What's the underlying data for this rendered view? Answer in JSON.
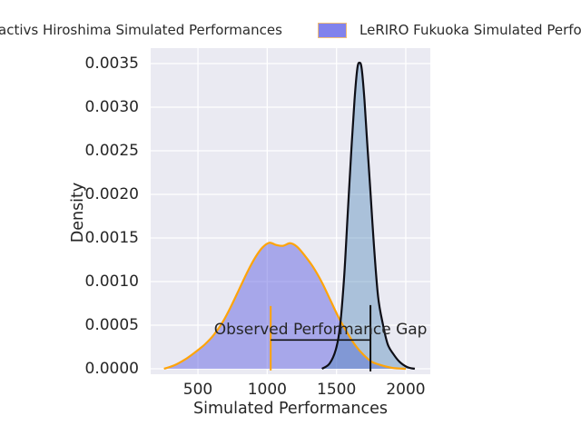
{
  "legend": {
    "entries": [
      {
        "label": "activs Hiroshima Simulated Performances",
        "swatch_visible": false
      },
      {
        "label": "LeRIRO Fukuoka Simulated Perfo",
        "swatch_visible": true,
        "swatch_fill": "#8182ec",
        "swatch_border": "#f2bd76"
      }
    ]
  },
  "chart_data": {
    "type": "area",
    "subtype": "kde-density",
    "title": "",
    "xlabel": "Simulated Performances",
    "ylabel": "Density",
    "xlim": [
      159,
      2177
    ],
    "ylim": [
      -6.25e-05,
      0.003677
    ],
    "x_ticks": [
      500,
      1000,
      1500,
      2000
    ],
    "y_ticks": [
      "0.0000",
      "0.0005",
      "0.0010",
      "0.0015",
      "0.0020",
      "0.0025",
      "0.0030",
      "0.0035"
    ],
    "grid": true,
    "plot_bg": "#eaeaf2",
    "grid_color": "#ffffff",
    "legend_position": "top, two columns, clipped at figure edges",
    "series": [
      {
        "name": "activs Hiroshima Simulated Performances",
        "line_color": "#0e0e16",
        "fill_color": "#4682b4",
        "fill_opacity": 0.39,
        "line_width": 2.2,
        "points": [
          [
            1395,
            0.0
          ],
          [
            1450,
            6e-05
          ],
          [
            1495,
            0.00022
          ],
          [
            1525,
            0.00048
          ],
          [
            1555,
            0.00105
          ],
          [
            1580,
            0.00175
          ],
          [
            1605,
            0.00245
          ],
          [
            1630,
            0.00308
          ],
          [
            1650,
            0.00344
          ],
          [
            1666,
            0.00351
          ],
          [
            1682,
            0.00344
          ],
          [
            1702,
            0.00308
          ],
          [
            1722,
            0.00258
          ],
          [
            1745,
            0.00203
          ],
          [
            1770,
            0.00142
          ],
          [
            1800,
            0.00083
          ],
          [
            1835,
            0.00051
          ],
          [
            1870,
            0.00028
          ],
          [
            1910,
            0.00017
          ],
          [
            1955,
            8e-05
          ],
          [
            2010,
            2e-05
          ],
          [
            2065,
            0.0
          ]
        ]
      },
      {
        "name": "LeRIRO Fukuoka Simulated Perfo",
        "line_color": "#ffa408",
        "fill_color": "#6464e2",
        "fill_opacity": 0.5,
        "line_width": 2.2,
        "points": [
          [
            255,
            0.0
          ],
          [
            330,
            4e-05
          ],
          [
            410,
            0.00011
          ],
          [
            480,
            0.00019
          ],
          [
            550,
            0.00028
          ],
          [
            615,
            0.00039
          ],
          [
            680,
            0.00054
          ],
          [
            740,
            0.00072
          ],
          [
            800,
            0.00092
          ],
          [
            860,
            0.00112
          ],
          [
            915,
            0.00128
          ],
          [
            965,
            0.00139
          ],
          [
            1015,
            0.001445
          ],
          [
            1065,
            0.00142
          ],
          [
            1115,
            0.00141
          ],
          [
            1165,
            0.00144
          ],
          [
            1215,
            0.0014
          ],
          [
            1270,
            0.0013
          ],
          [
            1330,
            0.00117
          ],
          [
            1395,
            0.00099
          ],
          [
            1455,
            0.00079
          ],
          [
            1515,
            0.00059
          ],
          [
            1575,
            0.00042
          ],
          [
            1635,
            0.00027
          ],
          [
            1695,
            0.00016
          ],
          [
            1755,
            8e-05
          ],
          [
            1825,
            4e-05
          ],
          [
            1905,
            1e-05
          ],
          [
            2000,
            0.0
          ]
        ]
      }
    ],
    "annotation": {
      "text": "Observed Performance Gap",
      "text_x": 1385,
      "text_y": 0.00036,
      "gap_line": {
        "y": 0.00033,
        "x1": 1025,
        "x2": 1745,
        "color": "#111111",
        "width": 1.6
      },
      "markers": [
        {
          "x": 1025,
          "y1": -2e-05,
          "y2": 0.00072,
          "color": "#ffa408",
          "width": 2
        },
        {
          "x": 1745,
          "y1": -3e-05,
          "y2": 0.00073,
          "color": "#111111",
          "width": 2
        }
      ]
    }
  }
}
